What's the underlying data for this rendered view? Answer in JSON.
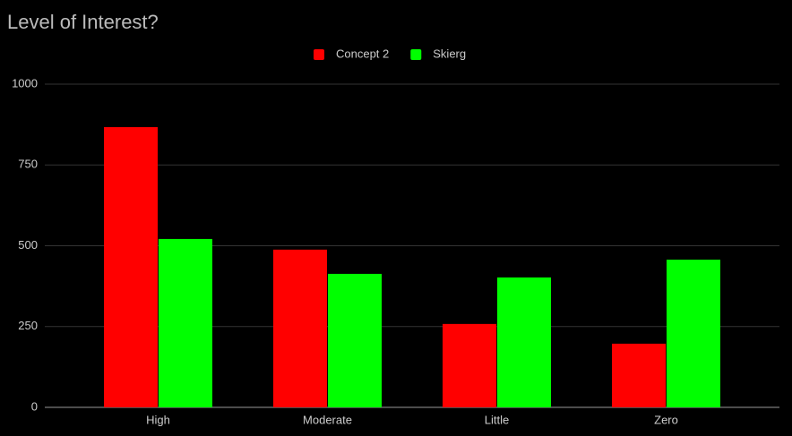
{
  "chart_data": {
    "type": "bar",
    "title": "Level of Interest?",
    "categories": [
      "High",
      "Moderate",
      "Little",
      "Zero"
    ],
    "series": [
      {
        "name": "Concept 2",
        "color": "#ff0000",
        "values": [
          867,
          488,
          258,
          197
        ]
      },
      {
        "name": "Skierg",
        "color": "#00ff00",
        "values": [
          521,
          413,
          402,
          457
        ]
      }
    ],
    "ylim": [
      0,
      1000
    ],
    "yticks": [
      0,
      250,
      500,
      750,
      1000
    ],
    "grid": true,
    "legend": "top"
  }
}
